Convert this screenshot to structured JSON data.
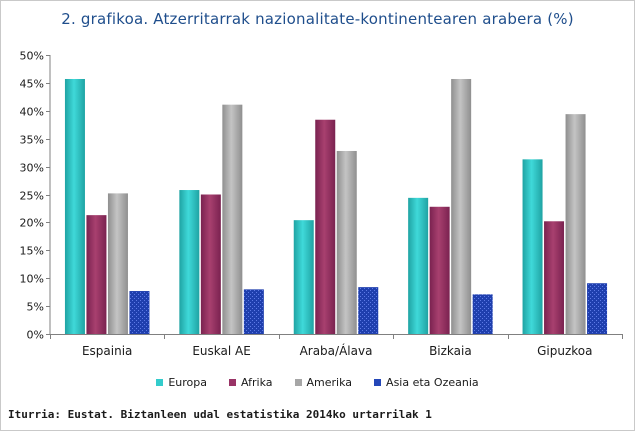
{
  "chart_data": {
    "type": "bar",
    "title": "2. grafikoa. Atzerritarrak nazionalitate-kontinentearen arabera (%)",
    "categories": [
      "Espainia",
      "Euskal AE",
      "Araba/Álava",
      "Bizkaia",
      "Gipuzkoa"
    ],
    "series": [
      {
        "name": "Europa",
        "color": "#33cccc",
        "values": [
          45.7,
          25.8,
          20.4,
          24.4,
          31.3
        ]
      },
      {
        "name": "Afrika",
        "color": "#993366",
        "values": [
          21.3,
          25.0,
          38.4,
          22.8,
          20.2
        ]
      },
      {
        "name": "Amerika",
        "color": "#a6a6a6",
        "values": [
          25.2,
          41.1,
          32.8,
          45.7,
          39.4
        ]
      },
      {
        "name": "Asia eta Ozeania",
        "color": "#2447b8",
        "values": [
          7.7,
          8.0,
          8.4,
          7.1,
          9.1
        ]
      }
    ],
    "ylim": [
      0,
      50
    ],
    "yticks": [
      "0%",
      "5%",
      "10%",
      "15%",
      "20%",
      "25%",
      "30%",
      "35%",
      "40%",
      "45%",
      "50%"
    ],
    "legend_position": "bottom",
    "grid": false
  },
  "source": "Iturria: Eustat. Biztanleen udal estatistika 2014ko urtarrilak 1"
}
